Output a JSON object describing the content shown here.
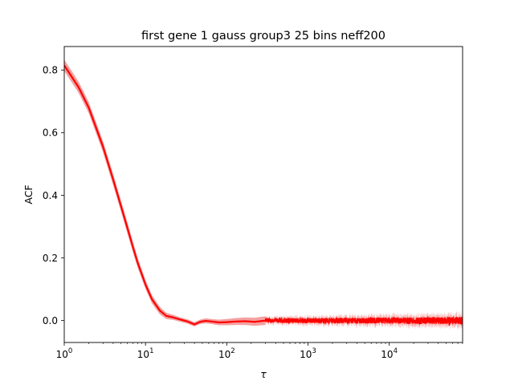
{
  "chart_data": {
    "type": "line",
    "title": "first gene 1 gauss group3 25 bins neff200",
    "xlabel": "τ",
    "ylabel": "ACF",
    "xscale": "log",
    "xlim": [
      1,
      80000
    ],
    "ylim": [
      -0.07,
      0.875
    ],
    "grid": false,
    "x_ticks": [
      {
        "value": 1,
        "base": "10",
        "exp": "0"
      },
      {
        "value": 10,
        "base": "10",
        "exp": "1"
      },
      {
        "value": 100,
        "base": "10",
        "exp": "2"
      },
      {
        "value": 1000,
        "base": "10",
        "exp": "3"
      },
      {
        "value": 10000,
        "base": "10",
        "exp": "4"
      }
    ],
    "y_ticks": [
      {
        "value": 0.0,
        "label": "0.0"
      },
      {
        "value": 0.2,
        "label": "0.2"
      },
      {
        "value": 0.4,
        "label": "0.4"
      },
      {
        "value": 0.6,
        "label": "0.6"
      },
      {
        "value": 0.8,
        "label": "0.8"
      }
    ],
    "series": [
      {
        "color": "#ff0000",
        "band_color": "#f08080",
        "x": [
          1,
          1.5,
          2,
          3,
          4,
          5,
          6,
          7,
          8,
          10,
          12,
          15,
          18,
          22,
          27,
          33,
          40,
          47,
          55,
          65,
          80,
          100,
          130,
          170,
          220,
          300
        ],
        "y": [
          0.815,
          0.745,
          0.68,
          0.555,
          0.45,
          0.365,
          0.295,
          0.235,
          0.185,
          0.115,
          0.068,
          0.032,
          0.015,
          0.01,
          0.003,
          -0.003,
          -0.012,
          -0.004,
          -0.001,
          -0.003,
          -0.006,
          -0.005,
          -0.003,
          -0.002,
          -0.004,
          0.0
        ],
        "band": [
          0.018,
          0.018,
          0.018,
          0.018,
          0.018,
          0.018,
          0.018,
          0.017,
          0.016,
          0.014,
          0.013,
          0.012,
          0.01,
          0.008,
          0.007,
          0.007,
          0.007,
          0.007,
          0.008,
          0.008,
          0.009,
          0.01,
          0.011,
          0.012,
          0.013,
          0.014
        ]
      }
    ],
    "noise_tail": {
      "x_start": 300,
      "x_end": 80000,
      "mean": 0.0,
      "amplitude": [
        0.007,
        0.012
      ],
      "band_amplitude": [
        0.012,
        0.022
      ]
    }
  }
}
